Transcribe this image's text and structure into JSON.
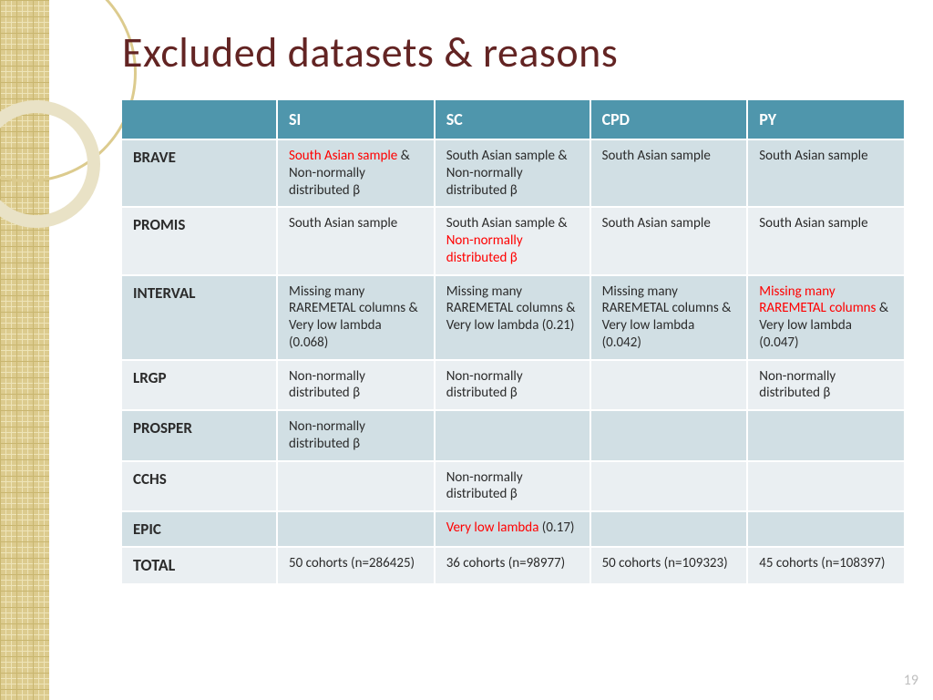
{
  "title": "Excluded datasets & reasons",
  "page_number": "19",
  "table": {
    "columns": [
      "",
      "SI",
      "SC",
      "CPD",
      "PY"
    ],
    "header_bg": "#4f96ac",
    "header_fg": "#ffffff",
    "band_a_bg": "#d1dfe4",
    "band_b_bg": "#eaeff2",
    "highlight_color": "#ff0000",
    "rows": [
      {
        "label": "BRAVE",
        "cells": [
          {
            "parts": [
              {
                "t": "South Asian sample",
                "red": true
              },
              {
                "t": " & Non-normally distributed β"
              }
            ]
          },
          {
            "parts": [
              {
                "t": "South Asian sample & Non-normally distributed β"
              }
            ]
          },
          {
            "parts": [
              {
                "t": "South Asian sample"
              }
            ]
          },
          {
            "parts": [
              {
                "t": "South Asian sample"
              }
            ]
          }
        ]
      },
      {
        "label": "PROMIS",
        "cells": [
          {
            "parts": [
              {
                "t": "South Asian sample"
              }
            ]
          },
          {
            "parts": [
              {
                "t": "South Asian sample & "
              },
              {
                "t": "Non-normally distributed β",
                "red": true
              }
            ]
          },
          {
            "parts": [
              {
                "t": "South Asian sample"
              }
            ]
          },
          {
            "parts": [
              {
                "t": "South Asian sample"
              }
            ]
          }
        ]
      },
      {
        "label": "INTERVAL",
        "cells": [
          {
            "parts": [
              {
                "t": "Missing many RAREMETAL columns & Very low lambda (0.068)"
              }
            ]
          },
          {
            "parts": [
              {
                "t": "Missing many RAREMETAL columns & Very low lambda (0.21)"
              }
            ]
          },
          {
            "parts": [
              {
                "t": "Missing many RAREMETAL columns & Very low lambda (0.042)"
              }
            ]
          },
          {
            "parts": [
              {
                "t": "Missing many RAREMETAL columns",
                "red": true
              },
              {
                "t": " & Very low lambda (0.047)"
              }
            ]
          }
        ]
      },
      {
        "label": "LRGP",
        "cells": [
          {
            "parts": [
              {
                "t": "Non-normally distributed β"
              }
            ]
          },
          {
            "parts": [
              {
                "t": "Non-normally distributed β"
              }
            ]
          },
          {
            "parts": []
          },
          {
            "parts": [
              {
                "t": "Non-normally distributed β"
              }
            ]
          }
        ]
      },
      {
        "label": "PROSPER",
        "cells": [
          {
            "parts": [
              {
                "t": "Non-normally distributed β"
              }
            ]
          },
          {
            "parts": []
          },
          {
            "parts": []
          },
          {
            "parts": []
          }
        ]
      },
      {
        "label": "CCHS",
        "cells": [
          {
            "parts": []
          },
          {
            "parts": [
              {
                "t": "Non-normally distributed β"
              }
            ]
          },
          {
            "parts": []
          },
          {
            "parts": []
          }
        ]
      },
      {
        "label": "EPIC",
        "cells": [
          {
            "parts": []
          },
          {
            "parts": [
              {
                "t": "Very low lambda",
                "red": true
              },
              {
                "t": " (0.17)"
              }
            ]
          },
          {
            "parts": []
          },
          {
            "parts": []
          }
        ]
      },
      {
        "label": "TOTAL",
        "total": true,
        "cells": [
          {
            "parts": [
              {
                "t": "50 cohorts (n=286425)"
              }
            ]
          },
          {
            "parts": [
              {
                "t": "36 cohorts (n=98977)"
              }
            ]
          },
          {
            "parts": [
              {
                "t": "50 cohorts (n=109323)"
              }
            ]
          },
          {
            "parts": [
              {
                "t": "45 cohorts (n=108397)"
              }
            ]
          }
        ]
      }
    ]
  }
}
